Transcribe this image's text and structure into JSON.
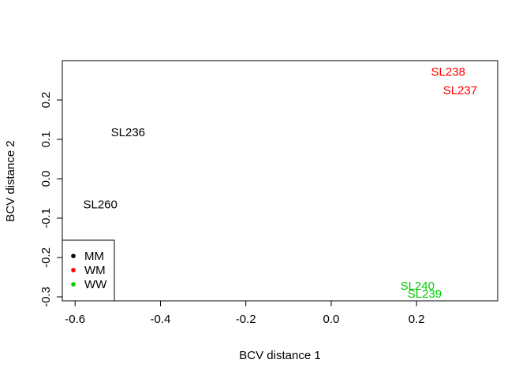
{
  "chart_data": {
    "type": "scatter",
    "title": "",
    "xlabel": "BCV distance 1",
    "ylabel": "BCV distance 2",
    "xlim": [
      -0.63,
      0.39
    ],
    "ylim": [
      -0.31,
      0.3
    ],
    "xticks": [
      -0.6,
      -0.4,
      -0.2,
      0.0,
      0.2
    ],
    "xtick_labels": [
      "-0.6",
      "-0.4",
      "-0.2",
      "0.0",
      "0.2"
    ],
    "yticks": [
      -0.3,
      -0.2,
      -0.1,
      0.0,
      0.1,
      0.2
    ],
    "ytick_labels": [
      "-0.3",
      "-0.2",
      "-0.1",
      "0.0",
      "0.1",
      "0.2"
    ],
    "grid": false,
    "legend_position": "bottom-left",
    "legend": [
      {
        "label": "MM",
        "color": "#000000"
      },
      {
        "label": "WM",
        "color": "#ff0000"
      },
      {
        "label": "WW",
        "color": "#00cd00"
      }
    ],
    "points": [
      {
        "label": "SL236",
        "x": -0.476,
        "y": 0.118,
        "group": "MM",
        "color": "#000000"
      },
      {
        "label": "SL260",
        "x": -0.541,
        "y": -0.065,
        "group": "MM",
        "color": "#000000"
      },
      {
        "label": "SL238",
        "x": 0.274,
        "y": 0.272,
        "group": "WM",
        "color": "#ff0000"
      },
      {
        "label": "SL237",
        "x": 0.302,
        "y": 0.225,
        "group": "WM",
        "color": "#ff0000"
      },
      {
        "label": "SL240",
        "x": 0.202,
        "y": -0.272,
        "group": "WW",
        "color": "#00cd00"
      },
      {
        "label": "SL239",
        "x": 0.219,
        "y": -0.292,
        "group": "WW",
        "color": "#00cd00"
      }
    ]
  }
}
